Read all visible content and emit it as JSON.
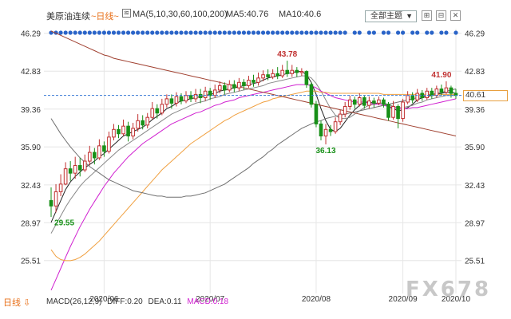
{
  "toolbar": {
    "title": "美原油连续",
    "period": "~日线~",
    "ma_label": "MA(5,10,30,60,100,200)",
    "ma5": "MA5:40.76",
    "ma10": "MA10:40.6",
    "topic": "全部主题",
    "topic_caret": "▼",
    "btn1": "⊞",
    "btn2": "⊟",
    "btn3": "✕"
  },
  "footer": {
    "period": "日线 ⇩",
    "macd_label": "MACD(26,12,9)",
    "dif": "DIFF:0.20",
    "dea": "DEA:0.11",
    "macd": "MACD:0.18"
  },
  "watermark": "FX678",
  "current_price_label": "40.61",
  "colors": {
    "up": "#c03030",
    "down": "#189018",
    "ma5": "#222222",
    "ma10": "#888888",
    "ma30": "#d020d0",
    "ma60": "#f0a040",
    "ma100": "#707070",
    "ma200": "#a04030",
    "dots": "#2a64c8",
    "accent": "#e8701a"
  },
  "chart_data": {
    "type": "candlestick",
    "title": "美原油连续",
    "y_ticks": [
      46.29,
      42.83,
      39.36,
      35.9,
      32.43,
      28.97,
      25.51
    ],
    "ylim": [
      22.5,
      47.0
    ],
    "x_labels": [
      "2020/06",
      "2020/07",
      "2020/08",
      "2020/09",
      "2020/10"
    ],
    "annotations": [
      {
        "text": "43.78",
        "value": 43.78
      },
      {
        "text": "36.13",
        "value": 36.13
      },
      {
        "text": "29.55",
        "value": 29.55
      },
      {
        "text": "41.90",
        "value": 41.9
      }
    ],
    "current_price": 40.61,
    "candles": [
      [
        31.0,
        30.5,
        32.2,
        29.5
      ],
      [
        30.5,
        31.8,
        32.5,
        29.9
      ],
      [
        31.8,
        32.5,
        33.4,
        31.4
      ],
      [
        32.5,
        33.9,
        34.5,
        32.4
      ],
      [
        33.9,
        33.5,
        34.6,
        32.8
      ],
      [
        33.5,
        34.2,
        35.0,
        33.0
      ],
      [
        34.2,
        33.8,
        34.9,
        33.2
      ],
      [
        33.8,
        34.6,
        35.2,
        33.6
      ],
      [
        34.6,
        35.4,
        36.0,
        34.2
      ],
      [
        35.4,
        34.9,
        35.8,
        34.3
      ],
      [
        34.9,
        36.0,
        36.6,
        34.7
      ],
      [
        36.0,
        35.5,
        36.4,
        35.0
      ],
      [
        35.5,
        36.8,
        37.3,
        35.3
      ],
      [
        36.8,
        37.5,
        38.0,
        36.5
      ],
      [
        37.5,
        37.1,
        37.9,
        36.7
      ],
      [
        37.1,
        37.8,
        38.4,
        36.9
      ],
      [
        37.8,
        36.9,
        38.2,
        36.4
      ],
      [
        36.9,
        37.6,
        38.1,
        36.6
      ],
      [
        37.6,
        38.3,
        38.9,
        37.3
      ],
      [
        38.3,
        37.9,
        38.8,
        37.5
      ],
      [
        37.9,
        38.6,
        39.0,
        37.6
      ],
      [
        38.6,
        39.4,
        40.0,
        38.4
      ],
      [
        39.4,
        39.0,
        39.8,
        38.5
      ],
      [
        39.0,
        39.8,
        40.3,
        38.8
      ],
      [
        39.8,
        40.3,
        40.7,
        39.5
      ],
      [
        40.3,
        39.9,
        40.7,
        39.4
      ],
      [
        39.9,
        40.5,
        40.9,
        39.6
      ],
      [
        40.5,
        40.1,
        40.8,
        39.8
      ],
      [
        40.1,
        40.6,
        41.0,
        39.9
      ],
      [
        40.6,
        40.3,
        41.0,
        40.0
      ],
      [
        40.3,
        40.7,
        41.2,
        40.0
      ],
      [
        40.7,
        40.4,
        41.2,
        39.9
      ],
      [
        40.4,
        41.0,
        41.4,
        40.1
      ],
      [
        41.0,
        40.6,
        41.3,
        40.2
      ],
      [
        40.6,
        41.1,
        41.6,
        40.4
      ],
      [
        41.1,
        41.5,
        41.9,
        40.8
      ],
      [
        41.5,
        41.1,
        41.8,
        40.7
      ],
      [
        41.1,
        41.6,
        42.0,
        40.9
      ],
      [
        41.6,
        41.3,
        42.0,
        40.9
      ],
      [
        41.3,
        41.8,
        42.2,
        41.0
      ],
      [
        41.8,
        41.5,
        42.1,
        41.1
      ],
      [
        41.5,
        42.0,
        42.4,
        41.3
      ],
      [
        42.0,
        41.8,
        42.5,
        41.4
      ],
      [
        41.8,
        42.2,
        42.7,
        41.5
      ],
      [
        42.2,
        42.5,
        42.9,
        41.9
      ],
      [
        42.5,
        42.3,
        43.0,
        42.0
      ],
      [
        42.3,
        42.6,
        43.0,
        42.1
      ],
      [
        42.6,
        42.4,
        43.2,
        42.1
      ],
      [
        42.4,
        42.9,
        43.4,
        42.2
      ],
      [
        42.9,
        42.6,
        43.78,
        42.3
      ],
      [
        42.6,
        42.9,
        43.4,
        42.3
      ],
      [
        42.9,
        42.7,
        43.2,
        42.3
      ],
      [
        42.7,
        42.8,
        43.1,
        42.4
      ],
      [
        42.8,
        41.6,
        42.9,
        41.3
      ],
      [
        41.6,
        39.8,
        41.8,
        39.5
      ],
      [
        39.8,
        38.0,
        40.1,
        37.7
      ],
      [
        38.0,
        36.9,
        38.3,
        36.5
      ],
      [
        36.9,
        37.5,
        38.0,
        36.13
      ],
      [
        37.5,
        37.3,
        37.9,
        36.9
      ],
      [
        37.3,
        38.2,
        38.6,
        37.1
      ],
      [
        38.2,
        38.9,
        39.3,
        37.9
      ],
      [
        38.9,
        39.6,
        40.0,
        38.6
      ],
      [
        39.6,
        40.2,
        40.6,
        39.3
      ],
      [
        40.2,
        39.8,
        40.5,
        39.4
      ],
      [
        39.8,
        40.4,
        40.8,
        39.6
      ],
      [
        40.4,
        39.7,
        40.6,
        39.4
      ],
      [
        39.7,
        40.1,
        40.5,
        39.4
      ],
      [
        40.1,
        39.9,
        40.4,
        39.5
      ],
      [
        39.9,
        40.2,
        40.5,
        39.7
      ],
      [
        40.2,
        39.8,
        40.4,
        39.5
      ],
      [
        39.8,
        38.6,
        40.0,
        38.3
      ],
      [
        38.6,
        39.6,
        40.1,
        38.4
      ],
      [
        39.6,
        38.5,
        39.8,
        37.6
      ],
      [
        38.5,
        40.0,
        40.3,
        38.2
      ],
      [
        40.0,
        40.6,
        41.0,
        39.8
      ],
      [
        40.6,
        40.2,
        40.9,
        39.9
      ],
      [
        40.2,
        40.8,
        41.2,
        40.0
      ],
      [
        40.8,
        40.4,
        41.1,
        40.1
      ],
      [
        40.4,
        41.0,
        41.3,
        40.2
      ],
      [
        41.0,
        40.6,
        41.3,
        40.3
      ],
      [
        40.6,
        41.2,
        41.5,
        40.4
      ],
      [
        41.2,
        40.9,
        41.6,
        40.6
      ],
      [
        40.9,
        41.3,
        41.9,
        40.7
      ],
      [
        41.3,
        40.8,
        41.5,
        40.4
      ],
      [
        40.8,
        40.61,
        41.2,
        40.3
      ]
    ],
    "series": [
      {
        "name": "MA5",
        "values": [
          29.0,
          30.0,
          31.0,
          32.0,
          32.7,
          33.2,
          33.6,
          34.0,
          34.3,
          34.6,
          35.0,
          35.3,
          35.7,
          36.1,
          36.5,
          36.9,
          37.1,
          37.3,
          37.5,
          37.7,
          38.0,
          38.4,
          38.7,
          39.0,
          39.4,
          39.6,
          39.9,
          40.1,
          40.2,
          40.3,
          40.4,
          40.5,
          40.6,
          40.7,
          40.8,
          41.0,
          41.1,
          41.2,
          41.3,
          41.4,
          41.5,
          41.6,
          41.7,
          41.8,
          42.0,
          42.2,
          42.3,
          42.4,
          42.5,
          42.6,
          42.7,
          42.8,
          42.8,
          42.5,
          41.8,
          40.7,
          39.4,
          38.3,
          37.5,
          37.3,
          37.6,
          38.2,
          38.8,
          39.3,
          39.7,
          40.0,
          40.0,
          39.9,
          39.9,
          39.9,
          39.6,
          39.4,
          39.2,
          39.3,
          39.5,
          39.8,
          40.2,
          40.4,
          40.5,
          40.6,
          40.7,
          40.8,
          40.9,
          40.9,
          40.8
        ]
      },
      {
        "name": "MA10",
        "values": [
          28.0,
          28.8,
          29.6,
          30.4,
          31.1,
          31.7,
          32.3,
          32.8,
          33.2,
          33.6,
          34.0,
          34.4,
          34.8,
          35.2,
          35.6,
          35.9,
          36.2,
          36.5,
          36.8,
          37.1,
          37.4,
          37.7,
          38.0,
          38.3,
          38.6,
          38.9,
          39.1,
          39.3,
          39.5,
          39.7,
          39.9,
          40.0,
          40.1,
          40.3,
          40.4,
          40.5,
          40.7,
          40.8,
          40.9,
          41.0,
          41.1,
          41.2,
          41.3,
          41.4,
          41.5,
          41.7,
          41.8,
          41.9,
          42.0,
          42.1,
          42.2,
          42.3,
          42.4,
          42.4,
          42.2,
          41.7,
          41.0,
          40.2,
          39.4,
          38.8,
          38.5,
          38.5,
          38.6,
          38.9,
          39.2,
          39.5,
          39.7,
          39.8,
          39.9,
          39.9,
          39.8,
          39.6,
          39.5,
          39.5,
          39.6,
          39.7,
          39.9,
          40.0,
          40.2,
          40.3,
          40.4,
          40.5,
          40.6,
          40.6,
          40.6
        ]
      },
      {
        "name": "MA30",
        "values": [
          22.8,
          23.8,
          24.8,
          25.8,
          26.8,
          27.7,
          28.6,
          29.4,
          30.2,
          30.9,
          31.6,
          32.3,
          32.9,
          33.5,
          34.0,
          34.5,
          35.0,
          35.4,
          35.8,
          36.2,
          36.5,
          36.8,
          37.1,
          37.4,
          37.7,
          38.0,
          38.2,
          38.4,
          38.6,
          38.8,
          39.0,
          39.1,
          39.3,
          39.5,
          39.7,
          39.8,
          40.0,
          40.1,
          40.2,
          40.4,
          40.5,
          40.6,
          40.7,
          40.8,
          40.9,
          41.0,
          41.1,
          41.2,
          41.3,
          41.4,
          41.5,
          41.6,
          41.6,
          41.6,
          41.5,
          41.3,
          41.0,
          40.8,
          40.6,
          40.4,
          40.3,
          40.2,
          40.1,
          40.0,
          40.0,
          40.0,
          39.9,
          39.8,
          39.8,
          39.7,
          39.6,
          39.5,
          39.4,
          39.4,
          39.4,
          39.5,
          39.5,
          39.6,
          39.7,
          39.8,
          39.9,
          40.0,
          40.1,
          40.2,
          40.3
        ]
      },
      {
        "name": "MA60",
        "values": [
          26.5,
          25.9,
          25.6,
          25.5,
          25.5,
          25.6,
          25.8,
          26.1,
          26.5,
          26.9,
          27.3,
          27.8,
          28.3,
          28.8,
          29.3,
          29.8,
          30.3,
          30.8,
          31.3,
          31.8,
          32.3,
          32.8,
          33.3,
          33.8,
          34.2,
          34.6,
          35.0,
          35.4,
          35.8,
          36.2,
          36.5,
          36.8,
          37.1,
          37.4,
          37.7,
          38.0,
          38.3,
          38.5,
          38.8,
          39.0,
          39.2,
          39.4,
          39.6,
          39.8,
          40.0,
          40.1,
          40.3,
          40.4,
          40.5,
          40.6,
          40.7,
          40.8,
          40.9,
          41.0,
          41.0,
          41.0,
          40.9,
          40.9,
          40.8,
          40.8,
          40.8,
          40.8,
          40.8,
          40.8,
          40.8,
          40.8,
          40.8,
          40.8,
          40.8,
          40.7,
          40.7,
          40.7,
          40.7,
          40.7,
          40.7,
          40.7,
          40.7,
          40.7,
          40.7,
          40.7,
          40.7,
          40.7,
          40.7,
          40.7,
          40.7
        ]
      },
      {
        "name": "MA100",
        "values": [
          38.5,
          37.8,
          37.1,
          36.5,
          35.9,
          35.4,
          34.9,
          34.5,
          34.1,
          33.8,
          33.5,
          33.2,
          32.9,
          32.7,
          32.5,
          32.3,
          32.1,
          31.9,
          31.8,
          31.7,
          31.6,
          31.5,
          31.4,
          31.4,
          31.3,
          31.3,
          31.3,
          31.3,
          31.4,
          31.4,
          31.5,
          31.6,
          31.7,
          31.9,
          32.1,
          32.3,
          32.5,
          32.8,
          33.1,
          33.4,
          33.7,
          34.0,
          34.4,
          34.7,
          35.0,
          35.4,
          35.7,
          36.1,
          36.4,
          36.7,
          37.0,
          37.3,
          37.6,
          37.8,
          38.0,
          38.2,
          38.3,
          38.5,
          38.6,
          38.7,
          38.8,
          38.9,
          39.0,
          39.1,
          39.2,
          39.3,
          39.4,
          39.5,
          39.6,
          39.7,
          39.8,
          39.9,
          40.0,
          40.1,
          40.2,
          40.3,
          40.4,
          40.5,
          40.6,
          40.7,
          40.8,
          40.9,
          41.0,
          41.1,
          41.2
        ]
      },
      {
        "name": "MA200",
        "values": [
          46.5,
          46.3,
          46.1,
          45.9,
          45.7,
          45.5,
          45.3,
          45.1,
          44.9,
          44.7,
          44.5,
          44.3,
          44.2,
          44.0,
          43.9,
          43.8,
          43.7,
          43.6,
          43.5,
          43.4,
          43.3,
          43.2,
          43.1,
          43.0,
          42.9,
          42.8,
          42.7,
          42.6,
          42.5,
          42.4,
          42.3,
          42.2,
          42.1,
          42.0,
          41.9,
          41.8,
          41.7,
          41.6,
          41.5,
          41.4,
          41.3,
          41.2,
          41.1,
          41.0,
          40.9,
          40.8,
          40.7,
          40.6,
          40.5,
          40.4,
          40.3,
          40.2,
          40.1,
          40.0,
          39.9,
          39.8,
          39.7,
          39.6,
          39.5,
          39.4,
          39.3,
          39.2,
          39.1,
          39.0,
          38.9,
          38.8,
          38.7,
          38.6,
          38.5,
          38.4,
          38.3,
          38.2,
          38.1,
          38.0,
          37.9,
          37.8,
          37.7,
          37.6,
          37.5,
          37.4,
          37.3,
          37.2,
          37.1,
          37.0,
          36.9
        ]
      }
    ]
  }
}
